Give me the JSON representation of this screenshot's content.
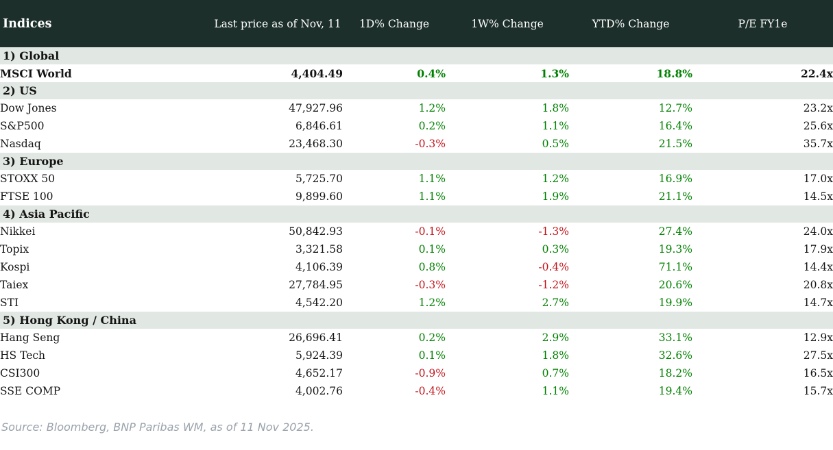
{
  "header": {
    "title": "Indices",
    "columns": [
      "Last price as of Nov, 11",
      "1D% Change",
      "1W% Change",
      "YTD% Change",
      "P/E FY1e"
    ]
  },
  "colors": {
    "header_bg": "#1c2f2a",
    "section_bg": "#e1e7e2",
    "positive": "#008000",
    "negative": "#c3151c",
    "muted_text": "#9aa2ab"
  },
  "chart_data": {
    "type": "table",
    "title": "Indices",
    "columns": [
      "Index",
      "Last price as of Nov, 11",
      "1D% Change",
      "1W% Change",
      "YTD% Change",
      "P/E FY1e"
    ]
  },
  "sections": [
    {
      "label": "1) Global",
      "rows": [
        {
          "name": "MSCI World",
          "price": "4,404.49",
          "d1": "0.4%",
          "w1": "1.3%",
          "ytd": "18.8%",
          "pe": "22.4x",
          "bold": true
        }
      ]
    },
    {
      "label": "2) US",
      "rows": [
        {
          "name": "Dow Jones",
          "price": "47,927.96",
          "d1": "1.2%",
          "w1": "1.8%",
          "ytd": "12.7%",
          "pe": "23.2x"
        },
        {
          "name": "S&P500",
          "price": "6,846.61",
          "d1": "0.2%",
          "w1": "1.1%",
          "ytd": "16.4%",
          "pe": "25.6x"
        },
        {
          "name": "Nasdaq",
          "price": "23,468.30",
          "d1": "-0.3%",
          "w1": "0.5%",
          "ytd": "21.5%",
          "pe": "35.7x"
        }
      ]
    },
    {
      "label": "3) Europe",
      "rows": [
        {
          "name": "STOXX 50",
          "price": "5,725.70",
          "d1": "1.1%",
          "w1": "1.2%",
          "ytd": "16.9%",
          "pe": "17.0x"
        },
        {
          "name": "FTSE 100",
          "price": "9,899.60",
          "d1": "1.1%",
          "w1": "1.9%",
          "ytd": "21.1%",
          "pe": "14.5x"
        }
      ]
    },
    {
      "label": "4) Asia Pacific",
      "rows": [
        {
          "name": "Nikkei",
          "price": "50,842.93",
          "d1": "-0.1%",
          "w1": "-1.3%",
          "ytd": "27.4%",
          "pe": "24.0x"
        },
        {
          "name": "Topix",
          "price": "3,321.58",
          "d1": "0.1%",
          "w1": "0.3%",
          "ytd": "19.3%",
          "pe": "17.9x"
        },
        {
          "name": "Kospi",
          "price": "4,106.39",
          "d1": "0.8%",
          "w1": "-0.4%",
          "ytd": "71.1%",
          "pe": "14.4x"
        },
        {
          "name": "Taiex",
          "price": "27,784.95",
          "d1": "-0.3%",
          "w1": "-1.2%",
          "ytd": "20.6%",
          "pe": "20.8x"
        },
        {
          "name": "STI",
          "price": "4,542.20",
          "d1": "1.2%",
          "w1": "2.7%",
          "ytd": "19.9%",
          "pe": "14.7x"
        }
      ]
    },
    {
      "label": "5) Hong Kong / China",
      "rows": [
        {
          "name": "Hang Seng",
          "price": "26,696.41",
          "d1": "0.2%",
          "w1": "2.9%",
          "ytd": "33.1%",
          "pe": "12.9x"
        },
        {
          "name": "HS Tech",
          "price": "5,924.39",
          "d1": "0.1%",
          "w1": "1.8%",
          "ytd": "32.6%",
          "pe": "27.5x"
        },
        {
          "name": "CSI300",
          "price": "4,652.17",
          "d1": "-0.9%",
          "w1": "0.7%",
          "ytd": "18.2%",
          "pe": "16.5x"
        },
        {
          "name": "SSE COMP",
          "price": "4,002.76",
          "d1": "-0.4%",
          "w1": "1.1%",
          "ytd": "19.4%",
          "pe": "15.7x"
        }
      ]
    }
  ],
  "footer": {
    "source": "Source: Bloomberg, BNP Paribas WM, as of 11 Nov 2025."
  }
}
